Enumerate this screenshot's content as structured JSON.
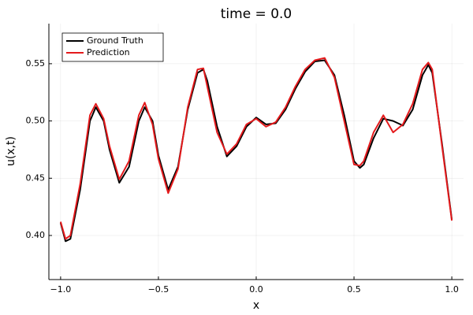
{
  "chart_data": {
    "type": "line",
    "title": "time = 0.0",
    "x_label": "x",
    "y_label": "u(x,t)",
    "x": [
      -1.0,
      -0.975,
      -0.95,
      -0.9,
      -0.85,
      -0.82,
      -0.78,
      -0.75,
      -0.7,
      -0.65,
      -0.6,
      -0.57,
      -0.53,
      -0.5,
      -0.45,
      -0.4,
      -0.35,
      -0.3,
      -0.27,
      -0.25,
      -0.2,
      -0.15,
      -0.1,
      -0.05,
      0.0,
      0.05,
      0.1,
      0.15,
      0.2,
      0.25,
      0.3,
      0.35,
      0.4,
      0.45,
      0.5,
      0.53,
      0.55,
      0.6,
      0.65,
      0.7,
      0.75,
      0.8,
      0.85,
      0.88,
      0.9,
      0.95,
      1.0
    ],
    "series": [
      {
        "name": "Ground Truth",
        "color": "#000000",
        "values": [
          0.411,
          0.395,
          0.397,
          0.44,
          0.5,
          0.512,
          0.5,
          0.475,
          0.446,
          0.46,
          0.5,
          0.512,
          0.5,
          0.47,
          0.44,
          0.46,
          0.51,
          0.542,
          0.545,
          0.535,
          0.495,
          0.469,
          0.478,
          0.495,
          0.503,
          0.497,
          0.498,
          0.51,
          0.528,
          0.543,
          0.552,
          0.553,
          0.54,
          0.505,
          0.465,
          0.459,
          0.462,
          0.485,
          0.502,
          0.5,
          0.496,
          0.51,
          0.54,
          0.549,
          0.542,
          0.48,
          0.414
        ]
      },
      {
        "name": "Prediction",
        "color": "#e41a1c",
        "values": [
          0.412,
          0.397,
          0.4,
          0.445,
          0.505,
          0.515,
          0.502,
          0.478,
          0.449,
          0.465,
          0.505,
          0.516,
          0.497,
          0.467,
          0.437,
          0.458,
          0.512,
          0.545,
          0.546,
          0.53,
          0.49,
          0.471,
          0.48,
          0.497,
          0.502,
          0.495,
          0.499,
          0.512,
          0.53,
          0.545,
          0.553,
          0.555,
          0.538,
          0.5,
          0.462,
          0.461,
          0.465,
          0.49,
          0.505,
          0.49,
          0.497,
          0.515,
          0.545,
          0.551,
          0.545,
          0.478,
          0.413
        ]
      }
    ],
    "xlim": [
      -1.06,
      1.06
    ],
    "ylim": [
      0.3615,
      0.585
    ],
    "xticks": [
      {
        "value": -1.0,
        "label": "−1.0"
      },
      {
        "value": -0.5,
        "label": "−0.5"
      },
      {
        "value": 0.0,
        "label": "0.0"
      },
      0.5,
      {
        "value": 1.0,
        "label": "1.0"
      }
    ],
    "yticks": [
      {
        "value": 0.4,
        "label": "0.40"
      },
      0.45,
      {
        "value": 0.5,
        "label": "0.50"
      },
      0.55
    ],
    "grid": true,
    "legend": "top-left"
  }
}
